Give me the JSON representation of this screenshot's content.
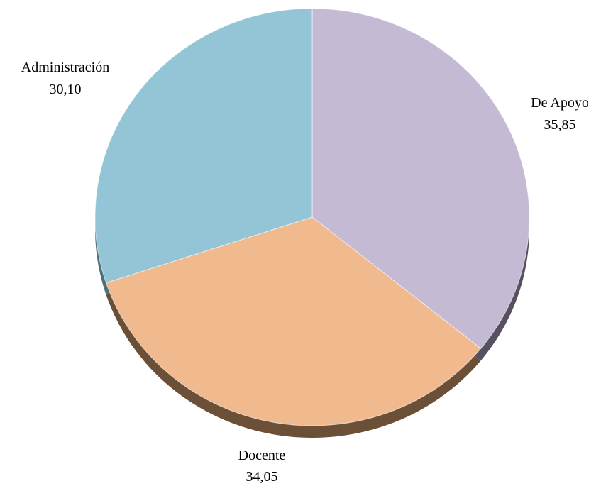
{
  "chart_data": {
    "type": "pie",
    "style": "3d",
    "start_angle_deg": 0,
    "direction": "clockwise",
    "slices": [
      {
        "label": "De Apoyo",
        "value": 35.85,
        "value_text": "35,85",
        "color": "#c4bad4",
        "side_color": "#565061"
      },
      {
        "label": "Docente",
        "value": 34.05,
        "value_text": "34,05",
        "color": "#f0b98e",
        "side_color": "#6b4f37"
      },
      {
        "label": "Administración",
        "value": 30.1,
        "value_text": "30,10",
        "color": "#93c5d6",
        "side_color": "#4f6f7a"
      }
    ]
  }
}
